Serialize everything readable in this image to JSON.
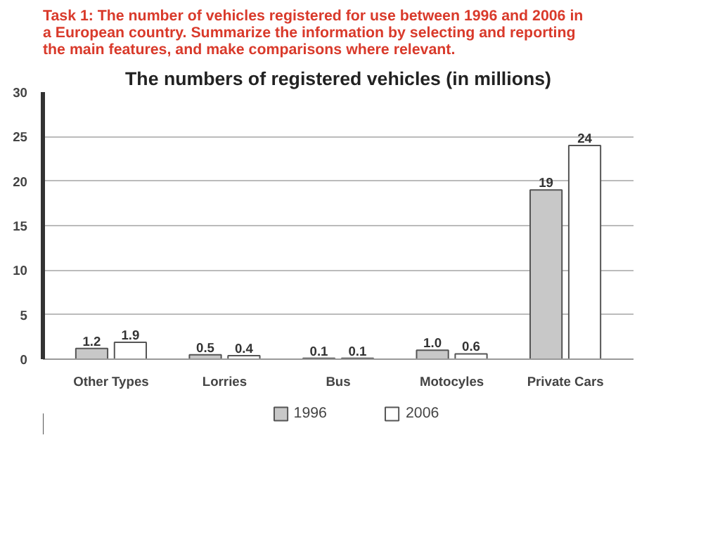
{
  "chart_data": {
    "type": "bar",
    "title": "The numbers of registered vehicles (in millions)",
    "annotations": [
      "Task 1: The number of vehicles registered for use between 1996 and 2006 in a European country. Summarize the information by selecting and reporting the main features, and make comparisons where relevant."
    ],
    "categories": [
      "Other Types",
      "Lorries",
      "Bus",
      "Motocyles",
      "Private Cars"
    ],
    "series": [
      {
        "name": "1996",
        "color": "#c8c8c8",
        "values": [
          1.2,
          0.5,
          0.1,
          1.0,
          19
        ],
        "value_labels": [
          "1.2",
          "0.5",
          "0.1",
          "1.0",
          "19"
        ]
      },
      {
        "name": "2006",
        "color": "#ffffff",
        "values": [
          1.9,
          0.4,
          0.1,
          0.6,
          24
        ],
        "value_labels": [
          "1.9",
          "0.4",
          "0.1",
          "0.6",
          "24"
        ]
      }
    ],
    "ylim": [
      0,
      30
    ],
    "yticks": [
      0,
      5,
      10,
      15,
      20,
      25,
      30
    ],
    "grid": "y",
    "legend": "bottom"
  }
}
